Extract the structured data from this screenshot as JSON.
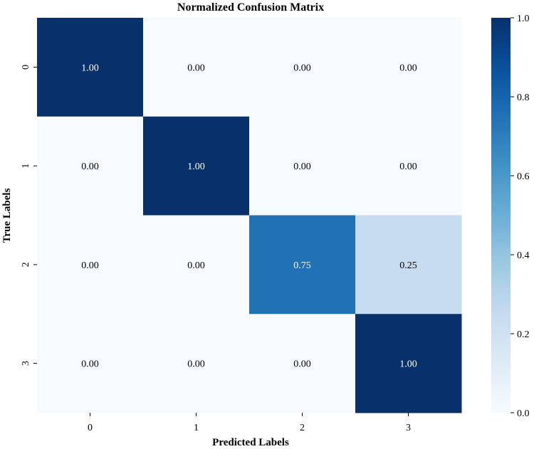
{
  "chart_data": {
    "type": "heatmap",
    "title": "Normalized Confusion Matrix",
    "xlabel": "Predicted Labels",
    "ylabel": "True Labels",
    "x_categories": [
      "0",
      "1",
      "2",
      "3"
    ],
    "y_categories": [
      "0",
      "1",
      "2",
      "3"
    ],
    "values": [
      [
        1.0,
        0.0,
        0.0,
        0.0
      ],
      [
        0.0,
        1.0,
        0.0,
        0.0
      ],
      [
        0.0,
        0.0,
        0.75,
        0.25
      ],
      [
        0.0,
        0.0,
        0.0,
        1.0
      ]
    ],
    "cell_labels": [
      [
        "1.00",
        "0.00",
        "0.00",
        "0.00"
      ],
      [
        "0.00",
        "1.00",
        "0.00",
        "0.00"
      ],
      [
        "0.00",
        "0.00",
        "0.75",
        "0.25"
      ],
      [
        "0.00",
        "0.00",
        "0.00",
        "1.00"
      ]
    ],
    "colormap": "Blues",
    "colorbar": {
      "range": [
        0.0,
        1.0
      ],
      "ticks": [
        0.0,
        0.2,
        0.4,
        0.6,
        0.8,
        1.0
      ],
      "tick_labels": [
        "0.0",
        "0.2",
        "0.4",
        "0.6",
        "0.8",
        "1.0"
      ]
    },
    "colors": {
      "low": "#f7fbff",
      "high": "#08306b",
      "text_light": "#ffffff",
      "text_dark": "#000000"
    }
  }
}
